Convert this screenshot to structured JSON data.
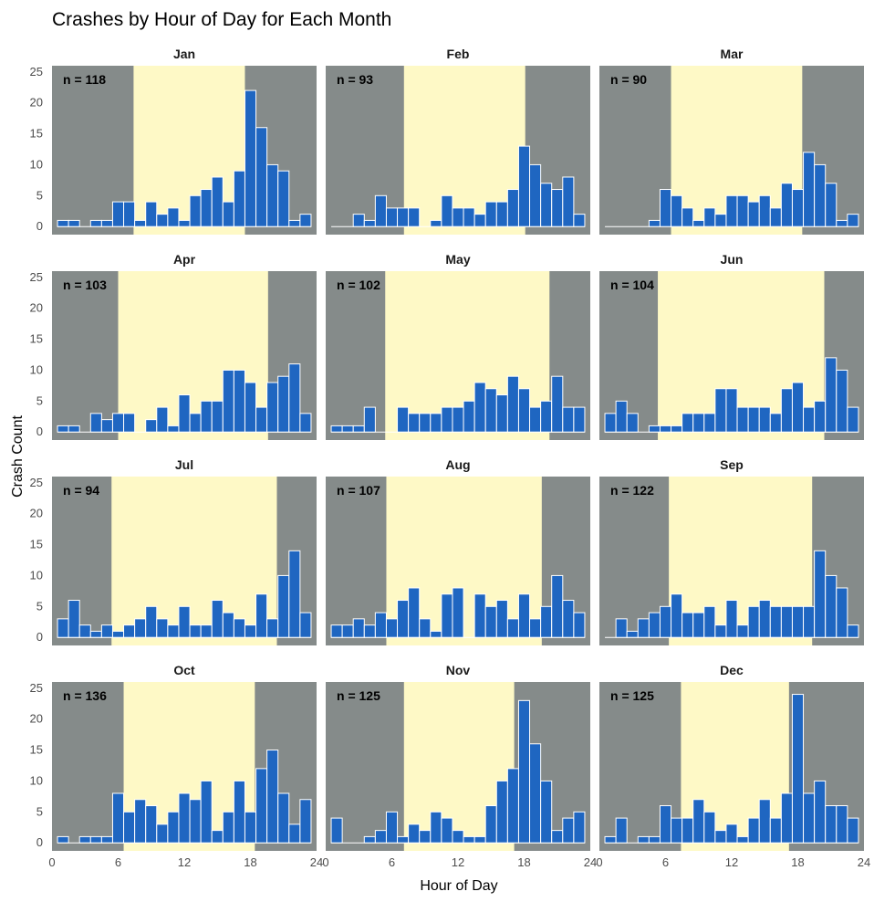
{
  "chart_data": {
    "type": "bar",
    "title": "Crashes by Hour of Day for Each Month",
    "xlabel": "Hour of Day",
    "ylabel": "Crash Count",
    "xlim": [
      0,
      24
    ],
    "ylim": [
      0,
      25
    ],
    "xticks": [
      0,
      6,
      12,
      18,
      24
    ],
    "yticks": [
      0,
      5,
      10,
      15,
      20,
      25
    ],
    "bin_centers": [
      1,
      2,
      3,
      4,
      5,
      6,
      7,
      8,
      9,
      10,
      11,
      12,
      13,
      14,
      15,
      16,
      17,
      18,
      19,
      20,
      21,
      22,
      23
    ],
    "grid": false,
    "legend": "none",
    "colors": {
      "bar_fill": "#1f66c1",
      "bar_stroke": "#ffffff",
      "night": "#858b8a",
      "daylight": "#fef9c6"
    },
    "panels": [
      {
        "month": "Jan",
        "n_label": "n = 118",
        "daylight": [
          7.4,
          17.5
        ],
        "values": [
          1,
          1,
          0,
          1,
          1,
          4,
          4,
          1,
          4,
          2,
          3,
          1,
          5,
          6,
          8,
          4,
          9,
          22,
          16,
          10,
          9,
          1,
          2
        ]
      },
      {
        "month": "Feb",
        "n_label": "n = 93",
        "daylight": [
          7.1,
          18.1
        ],
        "values": [
          0,
          0,
          2,
          1,
          5,
          3,
          3,
          3,
          0,
          1,
          5,
          3,
          3,
          2,
          4,
          4,
          6,
          13,
          10,
          7,
          6,
          8,
          2
        ]
      },
      {
        "month": "Mar",
        "n_label": "n = 90",
        "daylight": [
          6.5,
          18.4
        ],
        "values": [
          0,
          0,
          0,
          0,
          1,
          6,
          5,
          3,
          1,
          3,
          2,
          5,
          5,
          4,
          5,
          3,
          7,
          6,
          12,
          10,
          7,
          1,
          2
        ]
      },
      {
        "month": "Apr",
        "n_label": "n = 103",
        "daylight": [
          6.0,
          19.6
        ],
        "values": [
          1,
          1,
          0,
          3,
          2,
          3,
          3,
          0,
          2,
          4,
          1,
          6,
          3,
          5,
          5,
          10,
          10,
          8,
          4,
          8,
          9,
          11,
          3
        ]
      },
      {
        "month": "May",
        "n_label": "n = 102",
        "daylight": [
          5.4,
          20.3
        ],
        "values": [
          1,
          1,
          1,
          4,
          0,
          0,
          4,
          3,
          3,
          3,
          4,
          4,
          5,
          8,
          7,
          6,
          9,
          7,
          4,
          5,
          9,
          4,
          4
        ]
      },
      {
        "month": "Jun",
        "n_label": "n = 104",
        "daylight": [
          5.3,
          20.4
        ],
        "values": [
          3,
          5,
          3,
          0,
          1,
          1,
          1,
          3,
          3,
          3,
          7,
          7,
          4,
          4,
          4,
          3,
          7,
          8,
          4,
          5,
          12,
          10,
          4
        ]
      },
      {
        "month": "Jul",
        "n_label": "n = 94",
        "daylight": [
          5.4,
          20.4
        ],
        "values": [
          3,
          6,
          2,
          1,
          2,
          1,
          2,
          3,
          5,
          3,
          2,
          5,
          2,
          2,
          6,
          4,
          3,
          2,
          7,
          3,
          10,
          14,
          4
        ]
      },
      {
        "month": "Aug",
        "n_label": "n = 107",
        "daylight": [
          5.5,
          19.6
        ],
        "values": [
          2,
          2,
          3,
          2,
          4,
          3,
          6,
          8,
          3,
          1,
          7,
          8,
          0,
          7,
          5,
          6,
          3,
          7,
          3,
          5,
          10,
          6,
          4
        ]
      },
      {
        "month": "Sep",
        "n_label": "n = 122",
        "daylight": [
          6.3,
          19.3
        ],
        "values": [
          0,
          3,
          1,
          3,
          4,
          5,
          7,
          4,
          4,
          5,
          2,
          6,
          2,
          5,
          6,
          5,
          5,
          5,
          5,
          14,
          10,
          8,
          2
        ]
      },
      {
        "month": "Oct",
        "n_label": "n = 136",
        "daylight": [
          6.5,
          18.4
        ],
        "values": [
          1,
          0,
          1,
          1,
          1,
          8,
          5,
          7,
          6,
          3,
          5,
          8,
          7,
          10,
          2,
          5,
          10,
          5,
          12,
          15,
          8,
          3,
          7
        ]
      },
      {
        "month": "Nov",
        "n_label": "n = 125",
        "daylight": [
          7.1,
          17.1
        ],
        "values": [
          4,
          0,
          0,
          1,
          2,
          5,
          1,
          3,
          2,
          5,
          4,
          2,
          1,
          1,
          6,
          10,
          12,
          23,
          16,
          10,
          2,
          4,
          5
        ]
      },
      {
        "month": "Dec",
        "n_label": "n = 125",
        "daylight": [
          7.4,
          17.2
        ],
        "values": [
          1,
          4,
          0,
          1,
          1,
          6,
          4,
          4,
          7,
          5,
          2,
          3,
          1,
          4,
          7,
          4,
          8,
          24,
          8,
          10,
          6,
          6,
          4
        ]
      }
    ]
  }
}
